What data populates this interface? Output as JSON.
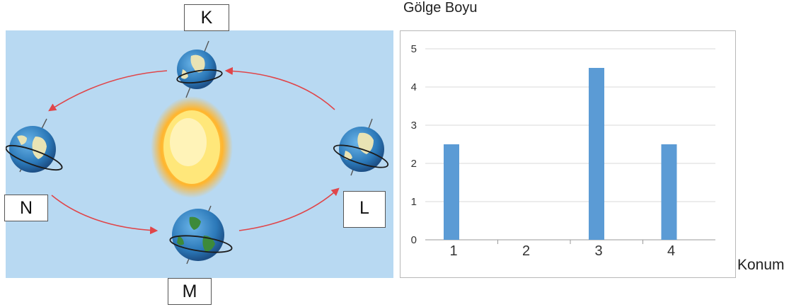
{
  "orbit_diagram": {
    "labels": {
      "K": "K",
      "L": "L",
      "M": "M",
      "N": "N"
    },
    "colors": {
      "background": "#b8d9f2",
      "arrow": "#e0464a",
      "sun": "#ffd23a",
      "ocean": "#2e7fc0",
      "land": "#e9e3b4"
    },
    "icons": [
      "earth-icon",
      "sun-icon",
      "orbit-arrow"
    ]
  },
  "chart_data": {
    "type": "bar",
    "title": "Gölge Boyu",
    "xlabel": "Konum",
    "ylabel": "",
    "categories": [
      "1",
      "2",
      "3",
      "4"
    ],
    "values": [
      2.5,
      0,
      4.5,
      2.5
    ],
    "ylim": [
      0,
      5
    ],
    "yticks": [
      "0",
      "1",
      "2",
      "3",
      "4",
      "5"
    ],
    "grid": true,
    "bar_color": "#5b9bd5"
  }
}
